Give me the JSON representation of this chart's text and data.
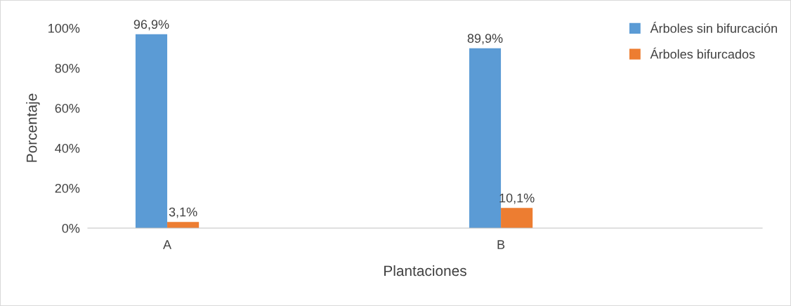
{
  "chart_data": {
    "type": "bar",
    "xlabel": "Plantaciones",
    "ylabel": "Porcentaje",
    "categories": [
      "A",
      "B"
    ],
    "series": [
      {
        "name": "Árboles sin bifurcación",
        "color": "#5b9bd5",
        "values": [
          96.9,
          89.9
        ],
        "value_labels": [
          "96,9%",
          "89,9%"
        ]
      },
      {
        "name": "Árboles bifurcados",
        "color": "#ed7d31",
        "values": [
          3.1,
          10.1
        ],
        "value_labels": [
          "3,1%",
          "10,1%"
        ]
      }
    ],
    "ylim": [
      0,
      100
    ],
    "yticks": [
      {
        "value": 0,
        "label": "0%"
      },
      {
        "value": 20,
        "label": "20%"
      },
      {
        "value": 40,
        "label": "40%"
      },
      {
        "value": 60,
        "label": "60%"
      },
      {
        "value": 80,
        "label": "80%"
      },
      {
        "value": 100,
        "label": "100%"
      }
    ],
    "grid": false,
    "legend": "top right"
  }
}
